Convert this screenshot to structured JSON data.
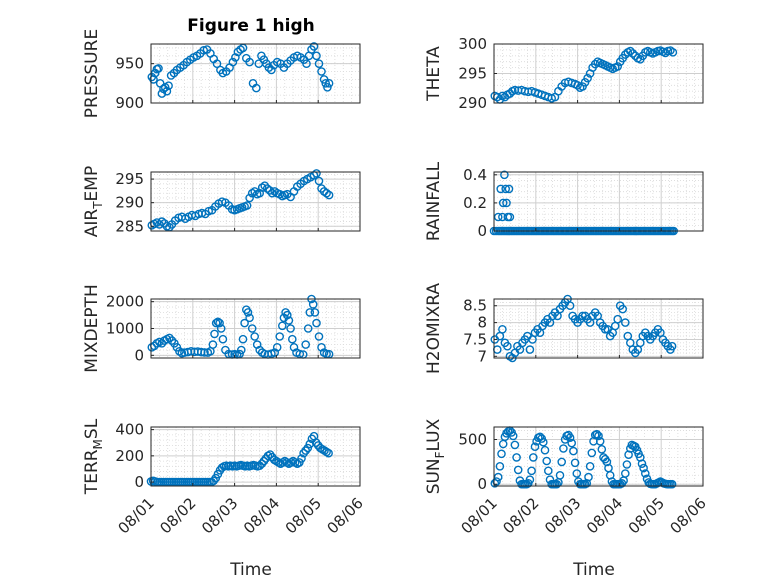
{
  "figure": {
    "title": "Figure 1 high",
    "xlabel": "Time",
    "x_ticks": [
      "08/01",
      "08/02",
      "08/03",
      "08/04",
      "08/05",
      "08/06"
    ],
    "marker_color": "#0072bd",
    "grid": true,
    "minor_grid": true
  },
  "chart_data": [
    {
      "type": "scatter",
      "ylabel": "PRESSURE",
      "ylim": [
        900,
        975
      ],
      "yticks": [
        900,
        950
      ],
      "xlim": [
        0,
        5
      ],
      "x": [
        0.02,
        0.06,
        0.1,
        0.14,
        0.18,
        0.22,
        0.26,
        0.3,
        0.34,
        0.38,
        0.42,
        0.48,
        0.55,
        0.62,
        0.7,
        0.78,
        0.86,
        0.94,
        1.02,
        1.1,
        1.18,
        1.26,
        1.34,
        1.42,
        1.5,
        1.58,
        1.66,
        1.72,
        1.8,
        1.88,
        1.96,
        2.02,
        2.08,
        2.14,
        2.2,
        2.28,
        2.36,
        2.44,
        2.52,
        2.58,
        2.64,
        2.7,
        2.76,
        2.82,
        2.88,
        2.94,
        3.02,
        3.1,
        3.18,
        3.26,
        3.34,
        3.42,
        3.5,
        3.58,
        3.66,
        3.72,
        3.78,
        3.84,
        3.9,
        3.96,
        4.02,
        4.08,
        4.14,
        4.18,
        4.22,
        4.26
      ],
      "y": [
        933,
        930,
        938,
        943,
        944,
        925,
        912,
        918,
        920,
        915,
        922,
        935,
        938,
        942,
        945,
        948,
        952,
        955,
        958,
        960,
        963,
        967,
        968,
        963,
        956,
        950,
        942,
        938,
        940,
        945,
        952,
        958,
        965,
        968,
        970,
        957,
        952,
        925,
        919,
        950,
        960,
        955,
        950,
        945,
        942,
        948,
        952,
        950,
        945,
        950,
        954,
        958,
        960,
        958,
        955,
        950,
        960,
        968,
        972,
        960,
        950,
        940,
        930,
        925,
        920,
        925
      ]
    },
    {
      "type": "scatter",
      "ylabel": "THETA",
      "ylim": [
        290,
        300
      ],
      "yticks": [
        290,
        295,
        300
      ],
      "xlim": [
        0,
        5
      ],
      "x": [
        0.02,
        0.08,
        0.14,
        0.2,
        0.26,
        0.32,
        0.38,
        0.44,
        0.5,
        0.58,
        0.66,
        0.74,
        0.82,
        0.9,
        0.98,
        1.06,
        1.14,
        1.22,
        1.3,
        1.38,
        1.46,
        1.54,
        1.62,
        1.7,
        1.78,
        1.86,
        1.94,
        2.0,
        2.06,
        2.12,
        2.18,
        2.24,
        2.3,
        2.36,
        2.42,
        2.48,
        2.54,
        2.6,
        2.66,
        2.72,
        2.78,
        2.84,
        2.9,
        2.96,
        3.02,
        3.08,
        3.14,
        3.2,
        3.26,
        3.32,
        3.38,
        3.44,
        3.5,
        3.56,
        3.62,
        3.68,
        3.74,
        3.8,
        3.86,
        3.92,
        3.98,
        4.04,
        4.1,
        4.16,
        4.22,
        4.28
      ],
      "y": [
        291.2,
        291.0,
        290.6,
        291.2,
        291.0,
        291.4,
        291.6,
        292.0,
        292.2,
        292.1,
        292.2,
        292.0,
        291.9,
        292.0,
        291.8,
        291.6,
        291.4,
        291.2,
        291.0,
        290.8,
        291.0,
        292.0,
        292.8,
        293.4,
        293.6,
        293.4,
        293.2,
        293.0,
        292.6,
        292.8,
        293.5,
        294.2,
        295.0,
        296.0,
        296.6,
        297.0,
        296.8,
        296.6,
        296.4,
        296.2,
        296.0,
        295.8,
        296.0,
        296.2,
        297.0,
        297.6,
        298.2,
        298.6,
        298.8,
        298.4,
        298.0,
        297.6,
        297.4,
        298.0,
        298.6,
        298.8,
        298.6,
        298.4,
        298.6,
        298.8,
        298.9,
        298.7,
        298.5,
        298.8,
        298.9,
        298.6
      ]
    },
    {
      "type": "scatter",
      "ylabel": "AIR_TEMP",
      "ylim": [
        284,
        296.5
      ],
      "yticks": [
        285,
        290,
        295
      ],
      "xlim": [
        0,
        5
      ],
      "x": [
        0.02,
        0.08,
        0.14,
        0.2,
        0.26,
        0.32,
        0.38,
        0.44,
        0.5,
        0.58,
        0.66,
        0.74,
        0.82,
        0.9,
        0.98,
        1.06,
        1.14,
        1.22,
        1.3,
        1.38,
        1.46,
        1.54,
        1.62,
        1.7,
        1.78,
        1.86,
        1.94,
        2.0,
        2.06,
        2.12,
        2.18,
        2.24,
        2.3,
        2.36,
        2.42,
        2.48,
        2.54,
        2.6,
        2.66,
        2.72,
        2.78,
        2.84,
        2.9,
        2.96,
        3.02,
        3.08,
        3.14,
        3.2,
        3.26,
        3.34,
        3.42,
        3.5,
        3.58,
        3.66,
        3.74,
        3.82,
        3.9,
        3.96,
        4.02,
        4.08,
        4.14,
        4.2,
        4.26
      ],
      "y": [
        285.2,
        285.5,
        285.8,
        285.4,
        286.0,
        285.6,
        285.0,
        284.8,
        285.4,
        286.2,
        286.8,
        287.0,
        286.6,
        287.0,
        287.4,
        287.2,
        287.6,
        287.8,
        287.6,
        288.2,
        288.4,
        289.2,
        289.8,
        290.2,
        290.0,
        289.4,
        288.6,
        288.4,
        288.6,
        288.8,
        289.0,
        289.2,
        289.4,
        291.0,
        292.0,
        292.4,
        291.8,
        292.0,
        293.2,
        293.6,
        293.0,
        292.6,
        292.0,
        292.4,
        292.0,
        291.8,
        291.4,
        291.6,
        291.8,
        291.2,
        292.4,
        293.4,
        294.0,
        294.6,
        295.0,
        295.4,
        295.8,
        296.2,
        294.6,
        293.0,
        292.4,
        292.0,
        291.6
      ]
    },
    {
      "type": "scatter",
      "ylabel": "RAINFALL",
      "ylim": [
        0,
        0.42
      ],
      "yticks": [
        0,
        0.2,
        0.4
      ],
      "xlim": [
        0,
        5
      ],
      "x": [
        0.0,
        0.05,
        0.1,
        0.14,
        0.18,
        0.22,
        0.26,
        0.3,
        0.34,
        0.38,
        0.42,
        0.46,
        0.5,
        0.54,
        0.58,
        0.62,
        0.66,
        0.7,
        0.74,
        0.78,
        0.82,
        0.86,
        0.9,
        0.94,
        0.98,
        1.02,
        1.06,
        1.1,
        1.14,
        1.18,
        1.22,
        1.26,
        1.3,
        1.34,
        1.38,
        1.42,
        1.46,
        1.5,
        1.54,
        1.58,
        1.62,
        1.66,
        1.7,
        1.74,
        1.78,
        1.82,
        1.86,
        1.9,
        1.94,
        1.98,
        2.02,
        2.06,
        2.1,
        2.14,
        2.18,
        2.22,
        2.26,
        2.3,
        2.34,
        2.38,
        2.42,
        2.46,
        2.5,
        2.54,
        2.58,
        2.62,
        2.66,
        2.7,
        2.74,
        2.78,
        2.82,
        2.86,
        2.9,
        2.94,
        2.98,
        3.02,
        3.06,
        3.1,
        3.14,
        3.18,
        3.22,
        3.26,
        3.3,
        3.34,
        3.38,
        3.42,
        3.46,
        3.5,
        3.54,
        3.58,
        3.62,
        3.66,
        3.7,
        3.74,
        3.78,
        3.82,
        3.86,
        3.9,
        3.94,
        3.98,
        4.02,
        4.06,
        4.1,
        4.14,
        4.18,
        4.22,
        4.26,
        4.3,
        0.1,
        0.16,
        0.2,
        0.22,
        0.25,
        0.28,
        0.3,
        0.33,
        0.36,
        0.38
      ],
      "y": [
        0,
        0,
        0,
        0,
        0,
        0,
        0,
        0,
        0,
        0,
        0,
        0,
        0,
        0,
        0,
        0,
        0,
        0,
        0,
        0,
        0,
        0,
        0,
        0,
        0,
        0,
        0,
        0,
        0,
        0,
        0,
        0,
        0,
        0,
        0,
        0,
        0,
        0,
        0,
        0,
        0,
        0,
        0,
        0,
        0,
        0,
        0,
        0,
        0,
        0,
        0,
        0,
        0,
        0,
        0,
        0,
        0,
        0,
        0,
        0,
        0,
        0,
        0,
        0,
        0,
        0,
        0,
        0,
        0,
        0,
        0,
        0,
        0,
        0,
        0,
        0,
        0,
        0,
        0,
        0,
        0,
        0,
        0,
        0,
        0,
        0,
        0,
        0,
        0,
        0,
        0,
        0,
        0,
        0,
        0,
        0,
        0,
        0,
        0,
        0,
        0,
        0,
        0,
        0,
        0,
        0,
        0,
        0,
        0.1,
        0.3,
        0.1,
        0.2,
        0.4,
        0.3,
        0.2,
        0.1,
        0.3,
        0.1
      ]
    },
    {
      "type": "scatter",
      "ylabel": "MIXDEPTH",
      "ylim": [
        -100,
        2100
      ],
      "yticks": [
        0,
        1000,
        2000
      ],
      "xlim": [
        0,
        5
      ],
      "x": [
        0.02,
        0.08,
        0.14,
        0.2,
        0.26,
        0.32,
        0.38,
        0.44,
        0.5,
        0.56,
        0.62,
        0.68,
        0.74,
        0.8,
        0.88,
        0.96,
        1.04,
        1.12,
        1.2,
        1.28,
        1.36,
        1.42,
        1.48,
        1.52,
        1.56,
        1.6,
        1.64,
        1.68,
        1.72,
        1.78,
        1.86,
        1.94,
        2.0,
        2.06,
        2.12,
        2.16,
        2.2,
        2.24,
        2.28,
        2.32,
        2.36,
        2.42,
        2.48,
        2.54,
        2.6,
        2.66,
        2.72,
        2.8,
        2.88,
        2.96,
        3.02,
        3.08,
        3.14,
        3.18,
        3.22,
        3.26,
        3.3,
        3.34,
        3.38,
        3.42,
        3.48,
        3.56,
        3.64,
        3.7,
        3.76,
        3.8,
        3.84,
        3.88,
        3.92,
        3.96,
        4.02,
        4.08,
        4.14,
        4.2,
        4.26
      ],
      "y": [
        300,
        350,
        450,
        500,
        450,
        550,
        600,
        650,
        550,
        450,
        300,
        150,
        80,
        100,
        120,
        150,
        130,
        140,
        120,
        110,
        100,
        150,
        400,
        800,
        1200,
        1250,
        1200,
        1000,
        600,
        200,
        50,
        30,
        40,
        30,
        50,
        200,
        600,
        1200,
        1700,
        1600,
        1400,
        1000,
        700,
        400,
        200,
        100,
        50,
        30,
        60,
        100,
        300,
        700,
        1100,
        1400,
        1600,
        1500,
        1300,
        1000,
        600,
        300,
        100,
        50,
        30,
        400,
        1000,
        1600,
        2100,
        1900,
        1600,
        1200,
        700,
        300,
        100,
        50,
        40
      ]
    },
    {
      "type": "scatter",
      "ylabel": "H2OMIXRA",
      "ylim": [
        6.95,
        8.7
      ],
      "yticks": [
        7,
        7.5,
        8,
        8.5
      ],
      "xlim": [
        0,
        5
      ],
      "x": [
        0.02,
        0.08,
        0.14,
        0.2,
        0.26,
        0.32,
        0.38,
        0.44,
        0.5,
        0.56,
        0.62,
        0.68,
        0.74,
        0.8,
        0.86,
        0.92,
        0.98,
        1.04,
        1.1,
        1.16,
        1.22,
        1.28,
        1.34,
        1.4,
        1.46,
        1.52,
        1.58,
        1.64,
        1.7,
        1.76,
        1.82,
        1.88,
        1.94,
        2.0,
        2.06,
        2.12,
        2.18,
        2.24,
        2.3,
        2.36,
        2.42,
        2.48,
        2.54,
        2.6,
        2.66,
        2.72,
        2.78,
        2.84,
        2.9,
        2.96,
        3.02,
        3.08,
        3.14,
        3.2,
        3.26,
        3.32,
        3.38,
        3.44,
        3.5,
        3.56,
        3.62,
        3.68,
        3.74,
        3.8,
        3.86,
        3.92,
        3.98,
        4.04,
        4.1,
        4.16,
        4.22,
        4.26
      ],
      "y": [
        7.5,
        7.2,
        7.6,
        7.8,
        7.4,
        7.3,
        7.0,
        6.95,
        7.1,
        7.3,
        7.2,
        7.4,
        7.5,
        7.6,
        7.2,
        7.5,
        7.7,
        7.8,
        7.7,
        7.9,
        8.0,
        8.1,
        8.0,
        8.2,
        8.3,
        8.2,
        8.4,
        8.5,
        8.6,
        8.7,
        8.5,
        8.2,
        8.1,
        8.0,
        8.1,
        8.2,
        8.2,
        8.1,
        8.0,
        8.2,
        8.3,
        8.2,
        8.0,
        7.9,
        7.8,
        7.8,
        7.6,
        7.7,
        7.9,
        8.1,
        8.5,
        8.4,
        8.0,
        7.6,
        7.4,
        7.2,
        7.1,
        7.2,
        7.4,
        7.6,
        7.7,
        7.6,
        7.5,
        7.6,
        7.7,
        7.8,
        7.7,
        7.5,
        7.4,
        7.3,
        7.2,
        7.3
      ]
    },
    {
      "type": "scatter",
      "ylabel": "TERR_MSL",
      "ylim": [
        -30,
        420
      ],
      "yticks": [
        0,
        200,
        400
      ],
      "xlim": [
        0,
        5
      ],
      "x": [
        0.0,
        0.05,
        0.1,
        0.15,
        0.2,
        0.25,
        0.3,
        0.35,
        0.4,
        0.45,
        0.5,
        0.55,
        0.6,
        0.65,
        0.7,
        0.75,
        0.8,
        0.85,
        0.9,
        0.95,
        1.0,
        1.05,
        1.1,
        1.15,
        1.2,
        1.25,
        1.3,
        1.35,
        1.4,
        1.45,
        1.5,
        1.55,
        1.6,
        1.65,
        1.7,
        1.75,
        1.8,
        1.85,
        1.9,
        1.95,
        2.0,
        2.05,
        2.1,
        2.15,
        2.2,
        2.25,
        2.3,
        2.35,
        2.4,
        2.45,
        2.5,
        2.55,
        2.6,
        2.65,
        2.7,
        2.75,
        2.8,
        2.85,
        2.9,
        2.95,
        3.0,
        3.05,
        3.1,
        3.15,
        3.2,
        3.25,
        3.3,
        3.35,
        3.4,
        3.45,
        3.5,
        3.55,
        3.6,
        3.65,
        3.7,
        3.75,
        3.8,
        3.85,
        3.9,
        3.95,
        4.0,
        4.05,
        4.1,
        4.15,
        4.2,
        4.25
      ],
      "y": [
        5,
        10,
        5,
        0,
        0,
        0,
        0,
        0,
        0,
        0,
        0,
        0,
        0,
        0,
        0,
        0,
        0,
        0,
        0,
        0,
        0,
        0,
        0,
        0,
        0,
        0,
        0,
        0,
        0,
        0,
        10,
        30,
        60,
        90,
        110,
        120,
        125,
        120,
        125,
        120,
        125,
        120,
        125,
        130,
        125,
        120,
        125,
        120,
        125,
        130,
        125,
        120,
        125,
        140,
        160,
        180,
        200,
        210,
        190,
        170,
        160,
        150,
        140,
        150,
        160,
        150,
        140,
        150,
        160,
        150,
        140,
        150,
        180,
        220,
        240,
        260,
        290,
        330,
        350,
        300,
        280,
        260,
        250,
        240,
        230,
        220
      ]
    },
    {
      "type": "scatter",
      "ylabel": "SUN_FLUX",
      "ylim": [
        -20,
        640
      ],
      "yticks": [
        0,
        500
      ],
      "xlim": [
        0,
        5
      ],
      "x": [
        0.02,
        0.06,
        0.1,
        0.14,
        0.18,
        0.22,
        0.26,
        0.3,
        0.34,
        0.38,
        0.42,
        0.46,
        0.5,
        0.54,
        0.58,
        0.62,
        0.66,
        0.7,
        0.74,
        0.78,
        0.82,
        0.86,
        0.9,
        0.94,
        0.98,
        1.02,
        1.06,
        1.1,
        1.14,
        1.18,
        1.22,
        1.26,
        1.3,
        1.34,
        1.38,
        1.42,
        1.46,
        1.5,
        1.54,
        1.58,
        1.62,
        1.66,
        1.7,
        1.74,
        1.78,
        1.82,
        1.86,
        1.9,
        1.94,
        1.98,
        2.02,
        2.06,
        2.1,
        2.14,
        2.18,
        2.22,
        2.26,
        2.3,
        2.34,
        2.38,
        2.42,
        2.46,
        2.5,
        2.54,
        2.58,
        2.62,
        2.66,
        2.7,
        2.74,
        2.78,
        2.82,
        2.86,
        2.9,
        2.94,
        2.98,
        3.02,
        3.06,
        3.1,
        3.14,
        3.18,
        3.22,
        3.26,
        3.3,
        3.34,
        3.38,
        3.42,
        3.46,
        3.5,
        3.54,
        3.58,
        3.62,
        3.66,
        3.7,
        3.74,
        3.78,
        3.82,
        3.86,
        3.9,
        3.94,
        3.98,
        4.02,
        4.06,
        4.1,
        4.14,
        4.18,
        4.22,
        4.26
      ],
      "y": [
        10,
        30,
        80,
        200,
        340,
        450,
        530,
        570,
        590,
        600,
        580,
        540,
        440,
        300,
        160,
        40,
        0,
        0,
        0,
        0,
        10,
        50,
        150,
        300,
        420,
        480,
        520,
        530,
        510,
        470,
        380,
        260,
        150,
        50,
        0,
        0,
        0,
        0,
        20,
        100,
        250,
        400,
        500,
        540,
        550,
        520,
        460,
        370,
        240,
        120,
        30,
        0,
        0,
        0,
        0,
        10,
        80,
        200,
        350,
        480,
        550,
        560,
        540,
        480,
        390,
        300,
        280,
        250,
        180,
        100,
        30,
        0,
        0,
        0,
        0,
        0,
        10,
        40,
        120,
        220,
        330,
        400,
        440,
        430,
        420,
        380,
        340,
        300,
        230,
        180,
        120,
        60,
        20,
        5,
        0,
        0,
        0,
        10,
        20,
        30,
        20,
        10,
        5,
        0,
        0,
        0,
        0
      ]
    }
  ]
}
